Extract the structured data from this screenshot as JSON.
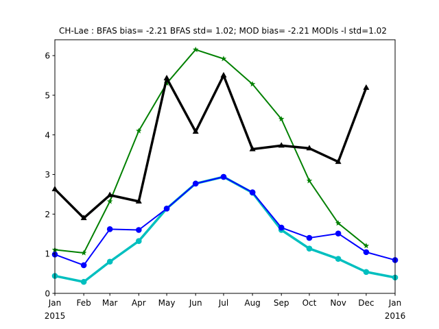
{
  "chart_data": {
    "type": "line",
    "title": "CH-Lae   : BFAS bias= -2.21 BFAS std= 1.02; MOD bias= -2.21 MODls -l std=1.02",
    "xlabel": "",
    "ylabel": "",
    "xlim": [
      "2015-01-01",
      "2016-01-01"
    ],
    "ylim": [
      0,
      6.4
    ],
    "grid": false,
    "x_tick_labels": [
      {
        "date": "2015-01-01",
        "label": "Jan",
        "sublabel": "2015"
      },
      {
        "date": "2015-02-01",
        "label": "Feb"
      },
      {
        "date": "2015-03-01",
        "label": "Mar"
      },
      {
        "date": "2015-04-01",
        "label": "Apr"
      },
      {
        "date": "2015-05-01",
        "label": "May"
      },
      {
        "date": "2015-06-01",
        "label": "Jun"
      },
      {
        "date": "2015-07-01",
        "label": "Jul"
      },
      {
        "date": "2015-08-01",
        "label": "Aug"
      },
      {
        "date": "2015-09-01",
        "label": "Sep"
      },
      {
        "date": "2015-10-01",
        "label": "Oct"
      },
      {
        "date": "2015-11-01",
        "label": "Nov"
      },
      {
        "date": "2015-12-01",
        "label": "Dec"
      },
      {
        "date": "2016-01-01",
        "label": "Jan",
        "sublabel": "2016"
      }
    ],
    "y_ticks": [
      0,
      1,
      2,
      3,
      4,
      5,
      6
    ],
    "series": [
      {
        "color": "#008000",
        "marker": "star",
        "width": "medium",
        "points": [
          {
            "x": "2015-01-01",
            "y": 1.1
          },
          {
            "x": "2015-02-01",
            "y": 1.02
          },
          {
            "x": "2015-03-01",
            "y": 2.32
          },
          {
            "x": "2015-04-01",
            "y": 4.1
          },
          {
            "x": "2015-05-01",
            "y": 5.3
          },
          {
            "x": "2015-06-01",
            "y": 6.15
          },
          {
            "x": "2015-07-01",
            "y": 5.92
          },
          {
            "x": "2015-08-01",
            "y": 5.28
          },
          {
            "x": "2015-09-01",
            "y": 4.4
          },
          {
            "x": "2015-10-01",
            "y": 2.84
          },
          {
            "x": "2015-11-01",
            "y": 1.77
          },
          {
            "x": "2015-12-01",
            "y": 1.2
          }
        ]
      },
      {
        "color": "#00bfbf",
        "marker": "circle",
        "width": "thick",
        "points": [
          {
            "x": "2015-01-01",
            "y": 0.44
          },
          {
            "x": "2015-02-01",
            "y": 0.29
          },
          {
            "x": "2015-03-01",
            "y": 0.8
          },
          {
            "x": "2015-04-01",
            "y": 1.32
          },
          {
            "x": "2015-05-01",
            "y": 2.14
          },
          {
            "x": "2015-06-01",
            "y": 2.77
          },
          {
            "x": "2015-07-01",
            "y": 2.94
          },
          {
            "x": "2015-08-01",
            "y": 2.54
          },
          {
            "x": "2015-09-01",
            "y": 1.6
          },
          {
            "x": "2015-10-01",
            "y": 1.13
          },
          {
            "x": "2015-11-01",
            "y": 0.87
          },
          {
            "x": "2015-12-01",
            "y": 0.54
          },
          {
            "x": "2016-01-01",
            "y": 0.4
          }
        ]
      },
      {
        "color": "#0000ff",
        "marker": "circle",
        "width": "medium",
        "points": [
          {
            "x": "2015-01-01",
            "y": 0.98
          },
          {
            "x": "2015-02-01",
            "y": 0.71
          },
          {
            "x": "2015-03-01",
            "y": 1.62
          },
          {
            "x": "2015-04-01",
            "y": 1.6
          },
          {
            "x": "2015-05-01",
            "y": 2.14
          },
          {
            "x": "2015-06-01",
            "y": 2.77
          },
          {
            "x": "2015-07-01",
            "y": 2.94
          },
          {
            "x": "2015-08-01",
            "y": 2.55
          },
          {
            "x": "2015-09-01",
            "y": 1.66
          },
          {
            "x": "2015-10-01",
            "y": 1.4
          },
          {
            "x": "2015-11-01",
            "y": 1.51
          },
          {
            "x": "2015-12-01",
            "y": 1.04
          },
          {
            "x": "2016-01-01",
            "y": 0.84
          }
        ]
      },
      {
        "color": "#000000",
        "marker": "triangle",
        "width": "thick",
        "points": [
          {
            "x": "2015-01-01",
            "y": 2.63
          },
          {
            "x": "2015-02-01",
            "y": 1.9
          },
          {
            "x": "2015-03-01",
            "y": 2.48
          },
          {
            "x": "2015-04-01",
            "y": 2.32
          },
          {
            "x": "2015-05-01",
            "y": 5.43
          },
          {
            "x": "2015-06-01",
            "y": 4.08
          },
          {
            "x": "2015-07-01",
            "y": 5.5
          },
          {
            "x": "2015-08-01",
            "y": 3.64
          },
          {
            "x": "2015-09-01",
            "y": 3.73
          },
          {
            "x": "2015-10-01",
            "y": 3.66
          },
          {
            "x": "2015-11-01",
            "y": 3.32
          },
          {
            "x": "2015-12-01",
            "y": 5.19
          }
        ]
      }
    ]
  }
}
